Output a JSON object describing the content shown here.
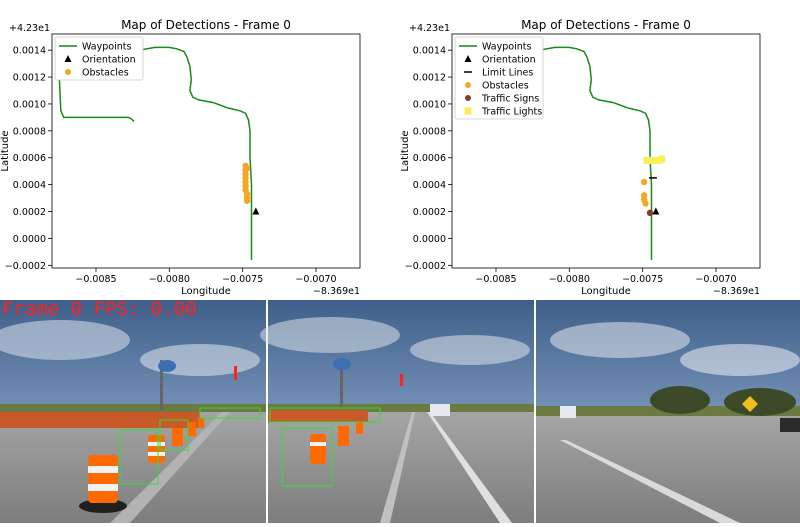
{
  "chart_data": [
    {
      "type": "line",
      "title": "Map of Detections - Frame 0",
      "xlabel": "Longitude",
      "ylabel": "Latitude",
      "x_offset_label": "−8.369e1",
      "y_offset_label": "+4.23e1",
      "xlim": [
        -0.0088,
        -0.0067
      ],
      "ylim": [
        -0.00022,
        0.00152
      ],
      "xticks": [
        -0.0085,
        -0.008,
        -0.0075,
        -0.007
      ],
      "xtick_labels": [
        "−0.0085",
        "−0.0080",
        "−0.0075",
        "−0.0070"
      ],
      "yticks": [
        -0.0002,
        0.0,
        0.0002,
        0.0004,
        0.0006,
        0.0008,
        0.001,
        0.0012,
        0.0014
      ],
      "ytick_labels": [
        "−0.0002",
        "0.0000",
        "0.0002",
        "0.0004",
        "0.0006",
        "0.0008",
        "0.0010",
        "0.0012",
        "0.0014"
      ],
      "legend": {
        "position": "top-left",
        "entries": [
          "Waypoints",
          "Orientation",
          "Obstacles"
        ]
      },
      "series": [
        {
          "name": "Waypoints",
          "kind": "line",
          "color": "#1a8a1a",
          "x": [
            -0.00875,
            -0.00855,
            -0.0084,
            -0.00835,
            -0.0083,
            -0.00825,
            -0.0082,
            -0.00815,
            -0.0081,
            -0.00805,
            -0.008,
            -0.00795,
            -0.0079,
            -0.00788,
            -0.00786,
            -0.00785,
            -0.00786,
            -0.00784,
            -0.0078,
            -0.0077,
            -0.0076,
            -0.00752,
            -0.00748,
            -0.00746,
            -0.00745,
            -0.00745,
            -0.00744,
            -0.00744,
            -0.00744,
            -0.00744
          ],
          "y": [
            0.00141,
            0.0014,
            0.00139,
            0.00139,
            0.00139,
            0.00139,
            0.0014,
            0.00141,
            0.00142,
            0.00142,
            0.00142,
            0.00141,
            0.00139,
            0.00135,
            0.00128,
            0.00118,
            0.0011,
            0.00105,
            0.00103,
            0.00101,
            0.00097,
            0.00095,
            0.00093,
            0.00088,
            0.0008,
            0.0006,
            0.0004,
            0.0002,
            5e-05,
            -0.00016
          ]
        },
        {
          "name": "Waypoints (start)",
          "kind": "line",
          "color": "#1a8a1a",
          "x": [
            -0.00875,
            -0.00875,
            -0.00874,
            -0.00872,
            -0.0086,
            -0.0084,
            -0.00828,
            -0.00826,
            -0.00824
          ],
          "y": [
            0.0014,
            0.0012,
            0.00095,
            0.0009,
            0.0009,
            0.0009,
            0.0009,
            0.00089,
            0.00087
          ]
        },
        {
          "name": "Orientation",
          "kind": "marker",
          "marker": "triangle",
          "color": "#000000",
          "x": [
            -0.00741
          ],
          "y": [
            0.0002
          ]
        },
        {
          "name": "Obstacles",
          "kind": "scatter",
          "marker": "circle",
          "color": "#f5a623",
          "x": [
            -0.00748,
            -0.00748,
            -0.00748,
            -0.00748,
            -0.00748,
            -0.00748,
            -0.00748,
            -0.00747,
            -0.00747,
            -0.00747,
            -0.00747
          ],
          "y": [
            0.00054,
            0.00051,
            0.00048,
            0.00045,
            0.00042,
            0.00039,
            0.00036,
            0.00033,
            0.0003,
            0.00028,
            0.00052
          ]
        }
      ]
    },
    {
      "type": "line",
      "title": "Map of Detections - Frame 0",
      "xlabel": "Longitude",
      "ylabel": "Latitude",
      "x_offset_label": "−8.369e1",
      "y_offset_label": "+4.23e1",
      "xlim": [
        -0.0088,
        -0.0067
      ],
      "ylim": [
        -0.00022,
        0.00152
      ],
      "xticks": [
        -0.0085,
        -0.008,
        -0.0075,
        -0.007
      ],
      "xtick_labels": [
        "−0.0085",
        "−0.0080",
        "−0.0075",
        "−0.0070"
      ],
      "yticks": [
        -0.0002,
        0.0,
        0.0002,
        0.0004,
        0.0006,
        0.0008,
        0.001,
        0.0012,
        0.0014
      ],
      "ytick_labels": [
        "−0.0002",
        "0.0000",
        "0.0002",
        "0.0004",
        "0.0006",
        "0.0008",
        "0.0010",
        "0.0012",
        "0.0014"
      ],
      "legend": {
        "position": "top-left",
        "entries": [
          "Waypoints",
          "Orientation",
          "Limit Lines",
          "Obstacles",
          "Traffic Signs",
          "Traffic Lights"
        ]
      },
      "series": [
        {
          "name": "Waypoints",
          "kind": "line",
          "color": "#1a8a1a",
          "x": [
            -0.0086,
            -0.0084,
            -0.00835,
            -0.0083,
            -0.00825,
            -0.0082,
            -0.00815,
            -0.0081,
            -0.00805,
            -0.008,
            -0.00795,
            -0.0079,
            -0.00788,
            -0.00786,
            -0.00785,
            -0.00786,
            -0.00784,
            -0.0078,
            -0.0077,
            -0.0076,
            -0.00752,
            -0.00748,
            -0.00746,
            -0.00745,
            -0.00745,
            -0.00744,
            -0.00744,
            -0.00744,
            -0.00744
          ],
          "y": [
            0.0014,
            0.00139,
            0.00139,
            0.00139,
            0.00139,
            0.0014,
            0.00141,
            0.00142,
            0.00142,
            0.00142,
            0.00141,
            0.00139,
            0.00135,
            0.00128,
            0.00118,
            0.0011,
            0.00105,
            0.00103,
            0.00101,
            0.00097,
            0.00095,
            0.00093,
            0.00088,
            0.0008,
            0.0006,
            0.0004,
            0.0002,
            5e-05,
            -0.00016
          ]
        },
        {
          "name": "Orientation",
          "kind": "marker",
          "marker": "triangle",
          "color": "#000000",
          "x": [
            -0.00741
          ],
          "y": [
            0.0002
          ]
        },
        {
          "name": "Limit Lines",
          "kind": "marker",
          "marker": "hline",
          "color": "#000000",
          "x": [
            -0.00743
          ],
          "y": [
            0.00045
          ]
        },
        {
          "name": "Obstacles",
          "kind": "scatter",
          "marker": "circle",
          "color": "#f5a623",
          "x": [
            -0.00749,
            -0.00749,
            -0.00749,
            -0.00748
          ],
          "y": [
            0.00042,
            0.00032,
            0.00029,
            0.00026
          ]
        },
        {
          "name": "Traffic Signs",
          "kind": "scatter",
          "marker": "circle",
          "color": "#8b3a2a",
          "x": [
            -0.00745
          ],
          "y": [
            0.00019
          ]
        },
        {
          "name": "Traffic Lights",
          "kind": "scatter",
          "marker": "square",
          "color": "#f7f056",
          "x": [
            -0.00747,
            -0.00743,
            -0.00739,
            -0.00737
          ],
          "y": [
            0.00058,
            0.00058,
            0.00058,
            0.00059
          ]
        }
      ]
    }
  ],
  "camera": {
    "frame_label": "Frame 0 FPS: 0.00",
    "colors": {
      "sky": "#4d6f98",
      "road": "#9a9a9a",
      "grass": "#6b7a3a",
      "cone": "#ff6a00",
      "detect_box": "#33dd33",
      "label_text": "#ff2020"
    }
  }
}
